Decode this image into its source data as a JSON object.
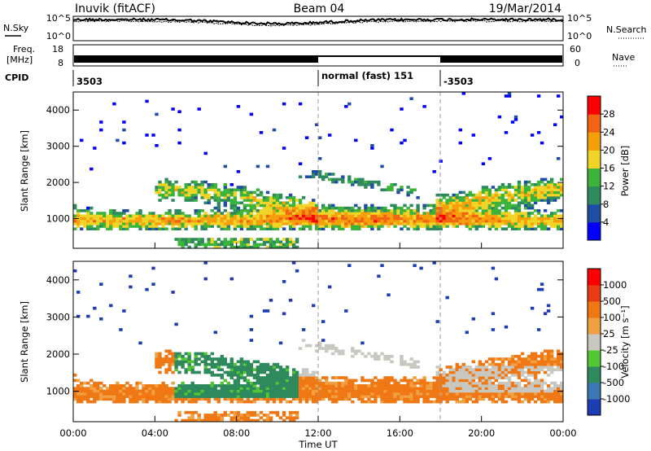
{
  "header": {
    "station": "Inuvik (fitACF)",
    "beam": "Beam 04",
    "date": "19/Mar/2014"
  },
  "top_panels": {
    "nsky_label": "N.Sky",
    "nsky_ticks": [
      "10^5",
      "10^0"
    ],
    "nsearch_label": "N.Search",
    "nsearch_ticks": [
      "10^5",
      "10^0"
    ],
    "freq_label": "Freq.",
    "freq_unit": "[MHz]",
    "freq_ticks": [
      "18",
      "8"
    ],
    "nave_label": "Nave",
    "nave_ticks": [
      "60",
      "0"
    ],
    "cpid_label": "CPID",
    "cpid_segments": [
      {
        "label": "3503",
        "start_hour": 0
      },
      {
        "label": "normal (fast) 151",
        "start_hour": 12
      },
      {
        "label": "-3503",
        "start_hour": 18
      }
    ]
  },
  "chart_data": [
    {
      "type": "heatmap",
      "title": "",
      "xlabel": "",
      "ylabel": "Slant Range [km]",
      "x_range_hours": [
        0,
        24
      ],
      "ylim": [
        180,
        4500
      ],
      "yticks": [
        1000,
        2000,
        3000,
        4000
      ],
      "colorbar": {
        "label": "Power [dB]",
        "ticks": [
          "4",
          "8",
          "12",
          "16",
          "20",
          "24",
          "28"
        ],
        "colors": [
          "#0000ff",
          "#1e4ca6",
          "#2e8a5c",
          "#3cb43c",
          "#f0d428",
          "#f5a00a",
          "#f06414",
          "#ff0000"
        ]
      }
    },
    {
      "type": "heatmap",
      "title": "",
      "xlabel": "Time UT",
      "ylabel": "Slant Range [km]",
      "x_range_hours": [
        0,
        24
      ],
      "xticks": [
        "00:00",
        "04:00",
        "08:00",
        "12:00",
        "16:00",
        "20:00",
        "00:00"
      ],
      "ylim": [
        180,
        4500
      ],
      "yticks": [
        1000,
        2000,
        3000,
        4000
      ],
      "colorbar": {
        "label": "Velocity [m s⁻¹]",
        "ticks": [
          "1000",
          "500",
          "100",
          "25",
          "-25",
          "-100",
          "-500",
          "-1000"
        ],
        "colors": [
          "#1e3cb4",
          "#3c78b4",
          "#2e8a5c",
          "#50c832",
          "#c8c8c0",
          "#f0a040",
          "#f07814",
          "#e83c14",
          "#ff0000"
        ]
      }
    }
  ]
}
